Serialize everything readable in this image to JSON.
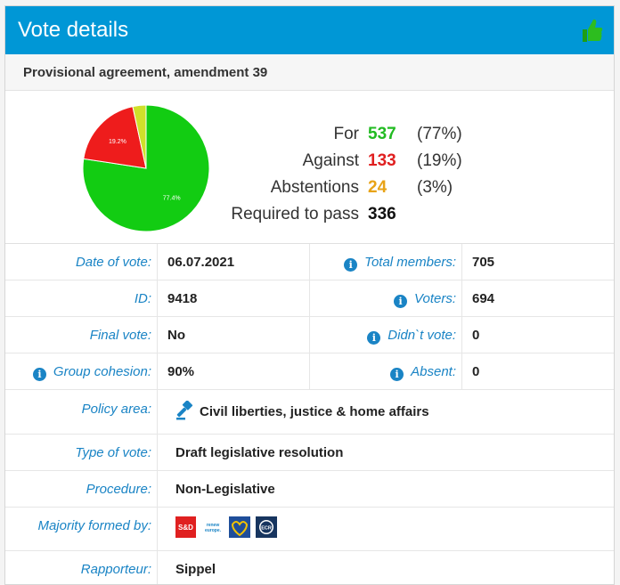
{
  "header": {
    "title": "Vote details",
    "icon": "thumbs-up-icon",
    "icon_color": "#2dbd1f",
    "bg_color": "#0097d6"
  },
  "subtitle": "Provisional agreement, amendment 39",
  "chart_data": {
    "type": "pie",
    "slices": [
      {
        "name": "For",
        "value": 77.4,
        "label": "77.4%",
        "color": "#12cc12"
      },
      {
        "name": "Against",
        "value": 19.2,
        "label": "19.2%",
        "color": "#ee1c1c"
      },
      {
        "name": "Abstentions",
        "value": 3.4,
        "label": "",
        "color": "#cfe02a"
      }
    ]
  },
  "summary": {
    "for": {
      "label": "For",
      "value": "537",
      "pct": "(77%)",
      "color": "#22bb22"
    },
    "against": {
      "label": "Against",
      "value": "133",
      "pct": "(19%)",
      "color": "#e02020"
    },
    "abstentions": {
      "label": "Abstentions",
      "value": "24",
      "pct": "(3%)",
      "color": "#e8a317"
    },
    "required": {
      "label": "Required to pass",
      "value": "336"
    }
  },
  "details": {
    "date_label": "Date of vote:",
    "date_value": "06.07.2021",
    "total_label": "Total members:",
    "total_value": "705",
    "id_label": "ID:",
    "id_value": "9418",
    "voters_label": "Voters:",
    "voters_value": "694",
    "final_label": "Final vote:",
    "final_value": "No",
    "didnt_label": "Didn`t vote:",
    "didnt_value": "0",
    "cohesion_label": "Group cohesion:",
    "cohesion_value": "90%",
    "absent_label": "Absent:",
    "absent_value": "0"
  },
  "meta": {
    "policy_label": "Policy area:",
    "policy_value": "Civil liberties, justice & home affairs",
    "type_label": "Type of vote:",
    "type_value": "Draft legislative resolution",
    "procedure_label": "Procedure:",
    "procedure_value": "Non-Legislative",
    "majority_label": "Majority formed by:",
    "majority_groups": [
      {
        "name": "S&D",
        "text": "S&D",
        "icon": "sd-logo-icon",
        "color": "#e02020"
      },
      {
        "name": "Renew Europe",
        "text": "renew europe.",
        "icon": "renew-europe-logo-icon",
        "color": "#1a84c5"
      },
      {
        "name": "EPP",
        "text": "",
        "icon": "epp-logo-icon",
        "color": "#1f4e9a"
      },
      {
        "name": "ECR",
        "text": "ECR",
        "icon": "ecr-logo-icon",
        "color": "#17355f"
      }
    ],
    "rapporteur_label": "Rapporteur:",
    "rapporteur_value": "Sippel"
  }
}
